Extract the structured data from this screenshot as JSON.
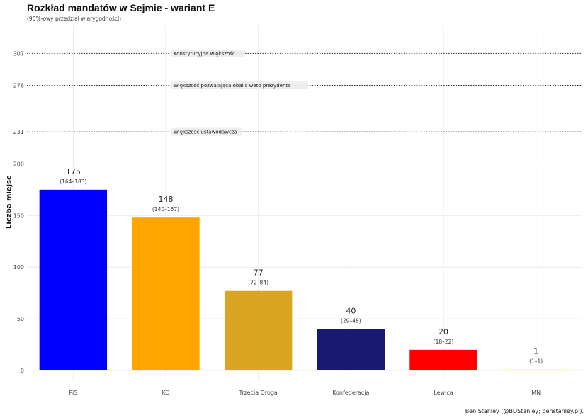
{
  "title": "Rozkład mandatów w Sejmie - wariant E",
  "subtitle": "(95%-owy przedział wiarygodności)",
  "caption": "Ben Stanley (@BDStanley; benstanley.pl).",
  "chart_data": {
    "type": "bar",
    "ylabel": "Liczba miejsc",
    "xlabel": "",
    "ylim": [
      0,
      334
    ],
    "yticks": [
      0,
      50,
      100,
      150,
      200,
      231,
      276,
      307
    ],
    "grid": true,
    "categories": [
      "PiS",
      "KO",
      "Trzecia Droga",
      "Konfederacja",
      "Lewica",
      "MN"
    ],
    "values": [
      175,
      148,
      77,
      40,
      20,
      1
    ],
    "value_labels": [
      "175",
      "148",
      "77",
      "40",
      "20",
      "1"
    ],
    "intervals": [
      "(164–183)",
      "(140–157)",
      "(72–84)",
      "(29–48)",
      "(18–22)",
      "(1–1)"
    ],
    "colors": [
      "#0000ff",
      "#ffa500",
      "#daa520",
      "#191970",
      "#ff0000",
      "#ffff66"
    ],
    "reference_lines": [
      {
        "value": 307,
        "label": "Konstytucyjna większość"
      },
      {
        "value": 276,
        "label": "Większość pozwalająca obalić weto prezydenta"
      },
      {
        "value": 231,
        "label": "Większość ustawodawcza"
      }
    ]
  }
}
